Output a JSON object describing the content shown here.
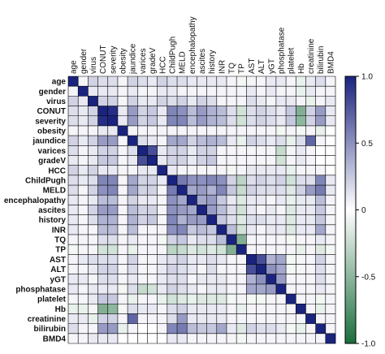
{
  "chart_data": {
    "type": "heatmap",
    "title": "",
    "variables": [
      "age",
      "gender",
      "virus",
      "CONUT",
      "severity",
      "obesity",
      "jaundice",
      "varices",
      "gradeV",
      "HCC",
      "ChildPugh",
      "MELD",
      "encephalopathy",
      "ascites",
      "history",
      "INR",
      "TQ",
      "TP",
      "AST",
      "ALT",
      "yGT",
      "phosphatase",
      "platelet",
      "Hb",
      "creatinine",
      "bilirubin",
      "BMD4"
    ],
    "colorbar": {
      "range": [
        -1,
        1
      ],
      "ticks": [
        "1.0",
        "0.5",
        "0",
        "-0.5",
        "-1.0"
      ],
      "colors": {
        "positive": "#1a237e",
        "zero": "#ffffff",
        "negative": "#1b6e3c"
      }
    },
    "upper_triangle": [
      [
        0.05,
        0.2,
        0.15,
        0.15,
        0.05,
        0.2,
        0.15,
        0.1,
        0.2,
        0.15,
        0.15,
        0.1,
        0.1,
        0.1,
        0.1,
        0.05,
        -0.05,
        0.05,
        0.05,
        0.1,
        0.1,
        0.05,
        -0.1,
        0.1,
        0.15,
        0.05
      ],
      [
        0.1,
        0.1,
        0.1,
        0.05,
        0.1,
        0.05,
        0.05,
        0.1,
        0.1,
        0.05,
        0.05,
        0.05,
        0.05,
        0.05,
        0.05,
        0.05,
        0.1,
        0.05,
        0.1,
        0.05,
        0.05,
        -0.1,
        0.1,
        0.05,
        0.05
      ],
      [
        0.2,
        0.2,
        0.05,
        0.2,
        0.1,
        0.1,
        0.2,
        0.15,
        0.2,
        0.1,
        0.2,
        0.15,
        0.05,
        0.05,
        0.05,
        0.15,
        0.1,
        0.05,
        0.1,
        0.1,
        0.05,
        -0.1,
        0.05,
        0.1,
        0.05
      ],
      [
        0.95,
        0.1,
        0.45,
        0.2,
        0.25,
        0.1,
        0.55,
        0.5,
        0.3,
        0.45,
        0.35,
        0.3,
        0.15,
        -0.2,
        0.15,
        0.2,
        0.15,
        0.1,
        0.25,
        -0.55,
        0.2,
        0.45,
        0.1
      ],
      [
        0.1,
        0.45,
        0.2,
        0.25,
        0.1,
        0.55,
        0.55,
        0.3,
        0.45,
        0.35,
        0.3,
        0.15,
        -0.2,
        0.15,
        0.2,
        0.15,
        0.1,
        0.25,
        -0.5,
        0.2,
        0.45,
        0.1
      ],
      [
        0.05,
        0.05,
        0.05,
        0.05,
        0.05,
        0.05,
        0.05,
        0.05,
        0.05,
        0.05,
        0.05,
        0.05,
        0.05,
        0.05,
        0.05,
        -0.05,
        0.05,
        -0.05,
        0.05,
        -0.1
      ],
      [
        0.15,
        0.1,
        0.05,
        0.4,
        0.4,
        0.2,
        0.3,
        0.35,
        0.3,
        0.1,
        -0.1,
        0.2,
        0.15,
        0.1,
        0.15,
        -0.1,
        0.15,
        0.7,
        0.05
      ],
      [
        0.8,
        0.1,
        0.2,
        0.2,
        0.1,
        0.2,
        0.2,
        0.05,
        0.05,
        0.05,
        0.05,
        0.05,
        0.05,
        -0.25,
        0.05,
        0.1,
        0.05
      ],
      [
        0.1,
        0.2,
        0.2,
        0.1,
        0.2,
        0.25,
        0.05,
        0.05,
        0.05,
        0.05,
        0.05,
        0.05,
        -0.2,
        0.05,
        0.1,
        0.05
      ],
      [
        0.1,
        0.05,
        0.05,
        0.05,
        0.05,
        0.05,
        -0.05,
        0.05,
        0.1,
        0.1,
        0.1,
        0.1,
        -0.1,
        0.05,
        0.05,
        0.05
      ],
      [
        0.6,
        0.5,
        0.5,
        0.55,
        0.5,
        0.2,
        -0.3,
        0.15,
        0.2,
        0.15,
        0.2,
        -0.2,
        0.15,
        0.15,
        0.55,
        0.1
      ],
      [
        0.4,
        0.45,
        0.35,
        0.55,
        0.25,
        -0.25,
        0.2,
        0.15,
        0.15,
        0.15,
        -0.15,
        0.2,
        0.45,
        0.6,
        0.1
      ],
      [
        0.4,
        0.45,
        0.25,
        0.1,
        -0.15,
        0.1,
        0.1,
        0.05,
        0.1,
        -0.1,
        0.1,
        0.1,
        0.3,
        0.05
      ],
      [
        0.45,
        0.3,
        0.15,
        -0.2,
        0.1,
        0.05,
        0.1,
        0.05,
        -0.15,
        0.1,
        0.1,
        0.25,
        0.05
      ],
      [
        0.25,
        0.15,
        -0.15,
        0.15,
        0.15,
        0.1,
        0.1,
        -0.15,
        0.1,
        0.1,
        0.25,
        0.05
      ],
      [
        0.3,
        -0.2,
        0.1,
        0.05,
        0.1,
        0.1,
        -0.15,
        0.1,
        0.1,
        0.4,
        0.05
      ],
      [
        -0.55,
        0.05,
        0.05,
        0.05,
        0.05,
        -0.05,
        0.05,
        0.05,
        0.1,
        0.05
      ],
      [
        0.05,
        0.05,
        0.05,
        0.05,
        0.05,
        -0.1,
        0.05,
        -0.15,
        -0.05
      ],
      [
        0.8,
        0.35,
        0.4,
        -0.05,
        0.05,
        0.05,
        0.2,
        0.05
      ],
      [
        0.5,
        0.4,
        -0.05,
        0.05,
        0.05,
        0.15,
        0.05
      ],
      [
        0.45,
        0.05,
        0.05,
        0.05,
        0.15,
        0.05
      ],
      [
        0.05,
        0.05,
        0.05,
        0.1,
        0.05
      ],
      [
        0.05,
        0.05,
        -0.05,
        0.05
      ],
      [
        0.05,
        -0.1,
        0.05
      ],
      [
        0.05,
        0.05
      ],
      [
        0.05
      ]
    ]
  }
}
